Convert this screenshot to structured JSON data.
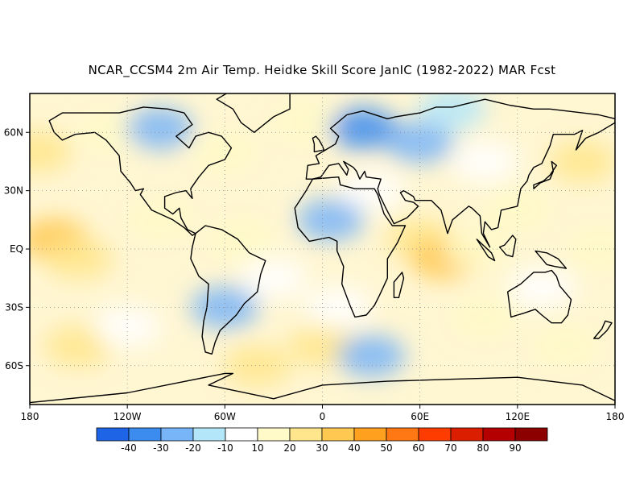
{
  "title": "NCAR_CCSM4 2m Air Temp. Heidke Skill Score JanIC (1982-2022) MAR Fcst",
  "map": {
    "lat_labels": [
      "60N",
      "30N",
      "EQ",
      "30S",
      "60S"
    ],
    "lon_labels": [
      "180",
      "120W",
      "60W",
      "0",
      "60E",
      "120E",
      "180"
    ],
    "grid": "dotted"
  },
  "colorbar": {
    "labels": [
      "-40",
      "-30",
      "-20",
      "-10",
      "10",
      "20",
      "30",
      "40",
      "50",
      "60",
      "70",
      "80",
      "90"
    ],
    "colors": [
      "#1e64e6",
      "#3c8cf0",
      "#78b4f8",
      "#b4e6fa",
      "#ffffff",
      "#fffac8",
      "#ffe68c",
      "#ffc850",
      "#ffa01e",
      "#ff7814",
      "#ff3c00",
      "#dc1e00",
      "#b40000",
      "#8c0000"
    ]
  },
  "skill_regions": [
    {
      "lon": -165,
      "lat": 5,
      "level": 7
    },
    {
      "lon": -150,
      "lat": -5,
      "level": 6
    },
    {
      "lon": -175,
      "lat": 50,
      "level": 6
    },
    {
      "lon": -130,
      "lat": 60,
      "level": 5
    },
    {
      "lon": -100,
      "lat": 15,
      "level": 5
    },
    {
      "lon": -150,
      "lat": -50,
      "level": 6
    },
    {
      "lon": -120,
      "lat": -40,
      "level": 4
    },
    {
      "lon": -60,
      "lat": 50,
      "level": 5
    },
    {
      "lon": -50,
      "lat": 5,
      "level": 5
    },
    {
      "lon": -30,
      "lat": -15,
      "level": 4
    },
    {
      "lon": -40,
      "lat": -60,
      "level": 6
    },
    {
      "lon": 0,
      "lat": -50,
      "level": 6
    },
    {
      "lon": 60,
      "lat": 5,
      "level": 6
    },
    {
      "lon": 75,
      "lat": -5,
      "level": 7
    },
    {
      "lon": 120,
      "lat": 20,
      "level": 5
    },
    {
      "lon": 95,
      "lat": 0,
      "level": 5
    },
    {
      "lon": 135,
      "lat": -20,
      "level": 4
    },
    {
      "lon": 160,
      "lat": 45,
      "level": 6
    },
    {
      "lon": 170,
      "lat": 0,
      "level": 5
    },
    {
      "lon": 100,
      "lat": 45,
      "level": 4
    },
    {
      "lon": 30,
      "lat": 30,
      "level": 4
    },
    {
      "lon": -10,
      "lat": 65,
      "level": 5
    },
    {
      "lon": 10,
      "lat": -30,
      "level": 4
    },
    {
      "lon": 150,
      "lat": -50,
      "level": 5
    },
    {
      "lon": 100,
      "lat": -35,
      "level": 5
    },
    {
      "lon": 60,
      "lat": 55,
      "level": 2
    },
    {
      "lon": 25,
      "lat": 62,
      "level": 1
    },
    {
      "lon": -100,
      "lat": 62,
      "level": 2
    },
    {
      "lon": -60,
      "lat": -30,
      "level": 2
    },
    {
      "lon": 30,
      "lat": -55,
      "level": 2
    },
    {
      "lon": 5,
      "lat": 15,
      "level": 2
    },
    {
      "lon": 80,
      "lat": 72,
      "level": 3
    }
  ]
}
